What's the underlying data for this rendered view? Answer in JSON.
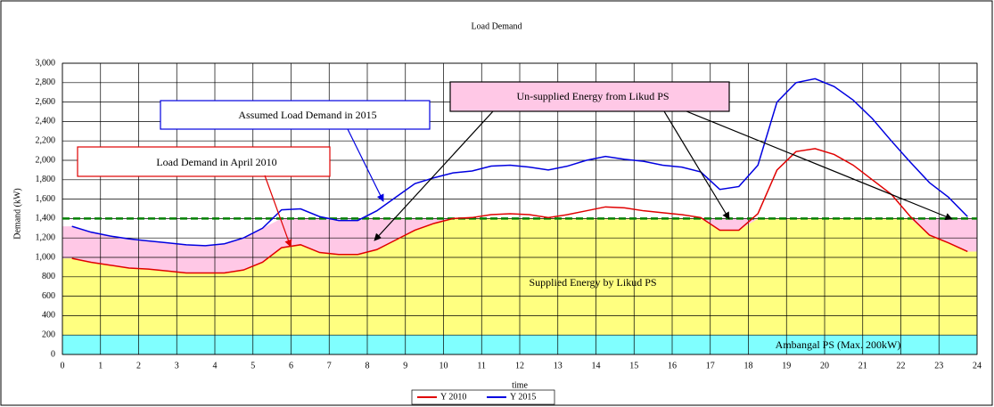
{
  "chart_data": {
    "type": "line",
    "title": "Load Demand",
    "x_label": "time",
    "y_label": "Demand (kW)",
    "xlim": [
      0,
      24
    ],
    "xticks": [
      0,
      1,
      2,
      3,
      4,
      5,
      6,
      7,
      8,
      9,
      10,
      11,
      12,
      13,
      14,
      15,
      16,
      17,
      18,
      19,
      20,
      21,
      22,
      23,
      24
    ],
    "ylim": [
      0,
      3000
    ],
    "yticks": [
      0,
      200,
      400,
      600,
      800,
      {
        "value": 1000,
        "label": "1,000"
      },
      {
        "value": 1200,
        "label": "1,200"
      },
      {
        "value": 1400,
        "label": "1,400"
      },
      {
        "value": 1600,
        "label": "1,600"
      },
      {
        "value": 1800,
        "label": "1,800"
      },
      {
        "value": 2000,
        "label": "2,000"
      },
      {
        "value": 2200,
        "label": "2,200"
      },
      {
        "value": 2400,
        "label": "2,400"
      },
      {
        "value": 2600,
        "label": "2,600"
      },
      {
        "value": 2800,
        "label": "2,800"
      },
      {
        "value": 3000,
        "label": "3,000"
      }
    ],
    "grid": true,
    "legend": "bottom",
    "x": [
      0.25,
      0.75,
      1.25,
      1.75,
      2.25,
      2.75,
      3.25,
      3.75,
      4.25,
      4.75,
      5.25,
      5.75,
      6.25,
      6.75,
      7.25,
      7.75,
      8.25,
      8.75,
      9.25,
      9.75,
      10.25,
      10.75,
      11.25,
      11.75,
      12.25,
      12.75,
      13.25,
      13.75,
      14.25,
      14.75,
      15.25,
      15.75,
      16.25,
      16.75,
      17.25,
      17.75,
      18.25,
      18.75,
      19.25,
      19.75,
      20.25,
      20.75,
      21.25,
      21.75,
      22.25,
      22.75,
      23.25,
      23.75
    ],
    "series": [
      {
        "name": "Y 2010",
        "color": "#e00000",
        "values": [
          990,
          950,
          920,
          890,
          880,
          860,
          840,
          840,
          840,
          870,
          950,
          1100,
          1130,
          1050,
          1030,
          1030,
          1080,
          1180,
          1280,
          1350,
          1400,
          1410,
          1440,
          1450,
          1440,
          1410,
          1440,
          1480,
          1520,
          1510,
          1480,
          1460,
          1440,
          1410,
          1280,
          1280,
          1450,
          1900,
          2090,
          2120,
          2060,
          1950,
          1800,
          1650,
          1420,
          1230,
          1150,
          1060
        ]
      },
      {
        "name": "Y 2015",
        "color": "#0000e0",
        "values": [
          1320,
          1260,
          1220,
          1190,
          1170,
          1150,
          1130,
          1120,
          1140,
          1200,
          1300,
          1490,
          1500,
          1420,
          1380,
          1380,
          1480,
          1620,
          1760,
          1820,
          1870,
          1890,
          1940,
          1950,
          1930,
          1900,
          1940,
          2000,
          2040,
          2010,
          1990,
          1950,
          1930,
          1880,
          1700,
          1730,
          1950,
          2600,
          2800,
          2840,
          2760,
          2620,
          2430,
          2200,
          1980,
          1770,
          1620,
          1420
        ]
      }
    ],
    "supply_limit": 1400,
    "base_supply": 200,
    "annotations": {
      "load_2010": "Load Demand in April  2010",
      "load_2015": "Assumed Load Demand in 2015",
      "unsupplied": "Un-supplied Energy from Likud PS",
      "supplied": "Supplied Energy by Likud PS",
      "ambangal": "Ambangal PS (Max. 200kW)"
    }
  }
}
